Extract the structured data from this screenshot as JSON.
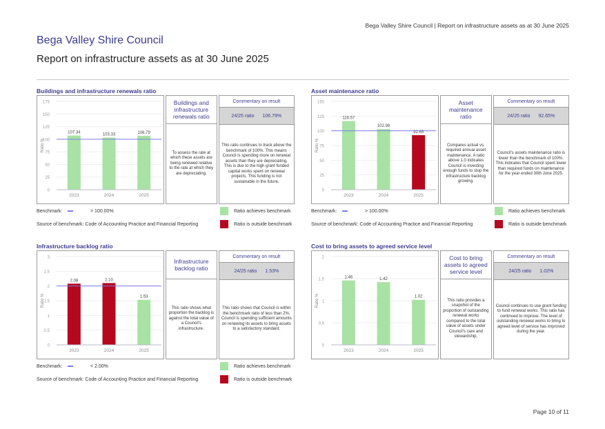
{
  "header": {
    "running_header": "Bega Valley Shire Council | Report on infrastructure assets as at 30 June 2025",
    "org_title": "Bega Valley Shire Council",
    "report_title": "Report on infrastructure assets as at 30 June 2025"
  },
  "colors": {
    "achieves": "#a8e2a4",
    "outside": "#b5081f",
    "benchmark_line": "#7b7be8",
    "title_blue": "#3b3b8f"
  },
  "sections": [
    {
      "title": "Buildings and infrastructure renewals ratio",
      "desc_title": "Buildings and infrastructure renewals ratio",
      "desc_text": "To assess the rate at which these assets are being renewed relative to the rate at which they are depreciating.",
      "commentary_head": "Commentary on result",
      "ratio_label": "24/25 ratio",
      "ratio_value": "106.79%",
      "commentary": "This ratio continues to track above the benchmark of 100%. This means Council is spending more on renewal assets than they are depreciating. This is due to the high grant funded capital works spent on renewal projects. This funding is not sustainable in the future.",
      "benchmark_label": "Benchmark:",
      "benchmark_value": "> 100.00%",
      "source": "Source of benchmark: Code of Accounting Practice and Financial Reporting",
      "legend_achieves": "Ratio achieves benchmark",
      "legend_outside": "Ratio is outside benchmark",
      "show_legend": true
    },
    {
      "title": "Asset maintenance ratio",
      "desc_title": "Asset maintenance ratio",
      "desc_text": "Compares actual vs. required annual asset maintenance. A ratio above 1.0 indicates Council is investing enough funds to stop the infrastructure backlog growing.",
      "commentary_head": "Commentary on result",
      "ratio_label": "24/25 ratio",
      "ratio_value": "92.65%",
      "commentary": "Council's assets maintenance ratio is lower than the benchmark of 100%. This indicates that Council spent lower than required funds on maintenance for the year ended 30th June 2025.",
      "benchmark_label": "Benchmark:",
      "benchmark_value": "> 100.00%",
      "source": "Source of benchmark: Code of Accounting Practice and Financial Reporting",
      "legend_achieves": "Ratio achieves benchmark",
      "legend_outside": "Ratio is outside benchmark",
      "show_legend": true
    },
    {
      "title": "Infrastructure backlog ratio",
      "desc_title": "Infrastructure backlog ratio",
      "desc_text": "This ratio shows what proportion the backlog is against the total value of a Council's infrastructure.",
      "commentary_head": "Commentary on result",
      "ratio_label": "24/25 ratio",
      "ratio_value": "1.53%",
      "commentary": "This ratio shows that Council is within the benchmark ratio of less than 2%. Council is spending sufficient amounts on renewing its assets to bring assets to a satisfactory standard.",
      "benchmark_label": "Benchmark:",
      "benchmark_value": "< 2.00%",
      "source": "Source of benchmark: Code of Accounting Practice and Financial Reporting",
      "legend_achieves": "Ratio achieves benchmark",
      "legend_outside": "Ratio is outside benchmark",
      "show_legend": true
    },
    {
      "title": "Cost to bring assets to agreed service level",
      "desc_title": "Cost to bring assets to agreed service level",
      "desc_text": "This ratio provides a snapshot of the proportion of outstanding renewal works compared to the total value of assets under Council's care and stewardship.",
      "commentary_head": "Commentary on result",
      "ratio_label": "24/25 ratio",
      "ratio_value": "1.02%",
      "commentary": "Council continues to use grant funding to fund renewal works. This ratio has continued to improve. The level of outstanding renewal works to bring to agreed level of service has improved during the year.",
      "show_legend": false
    }
  ],
  "chart_data": [
    {
      "type": "bar",
      "title": "Buildings and infrastructure renewals ratio",
      "ylabel": "Ratio %",
      "categories": [
        "2023",
        "2024",
        "2025"
      ],
      "values": [
        107.34,
        103.33,
        106.79
      ],
      "labels": [
        "107.34",
        "103.33",
        "106.79"
      ],
      "status": [
        "achieves",
        "achieves",
        "achieves"
      ],
      "yticks": [
        0,
        25,
        50,
        75,
        100,
        125,
        150,
        175
      ],
      "ylim": [
        0,
        175
      ],
      "benchmark": 100
    },
    {
      "type": "bar",
      "title": "Asset maintenance ratio",
      "ylabel": "Ratio %",
      "categories": [
        "2023",
        "2024",
        "2025"
      ],
      "values": [
        116.57,
        102.98,
        92.65
      ],
      "labels": [
        "116.57",
        "102.98",
        "92.65"
      ],
      "status": [
        "achieves",
        "achieves",
        "outside"
      ],
      "yticks": [
        0,
        25,
        50,
        75,
        100,
        125,
        150
      ],
      "ylim": [
        0,
        150
      ],
      "benchmark": 100
    },
    {
      "type": "bar",
      "title": "Infrastructure backlog ratio",
      "ylabel": "Ratio %",
      "categories": [
        "2023",
        "2024",
        "2025"
      ],
      "values": [
        2.08,
        2.1,
        1.53
      ],
      "labels": [
        "2.08",
        "2.10",
        "1.53"
      ],
      "status": [
        "outside",
        "outside",
        "achieves"
      ],
      "yticks": [
        0,
        0.5,
        1,
        1.5,
        2,
        2.5,
        3
      ],
      "ytick_labels": [
        "0",
        "0.5",
        "1",
        "1.5",
        "2",
        "2.5",
        "3"
      ],
      "ylim": [
        0,
        3
      ],
      "benchmark": 2
    },
    {
      "type": "bar",
      "title": "Cost to bring assets to agreed service level",
      "ylabel": "Ratio %",
      "categories": [
        "2023",
        "2024",
        "2025"
      ],
      "values": [
        1.46,
        1.42,
        1.02
      ],
      "labels": [
        "1.46",
        "1.42",
        "1.02"
      ],
      "status": [
        "achieves",
        "achieves",
        "achieves"
      ],
      "yticks": [
        0,
        0.5,
        1,
        1.5,
        2
      ],
      "ytick_labels": [
        "0",
        "0.5",
        "1",
        "1.5",
        "2"
      ],
      "ylim": [
        0,
        2
      ],
      "benchmark": null
    }
  ],
  "footer": {
    "page": "Page 10 of 11"
  }
}
